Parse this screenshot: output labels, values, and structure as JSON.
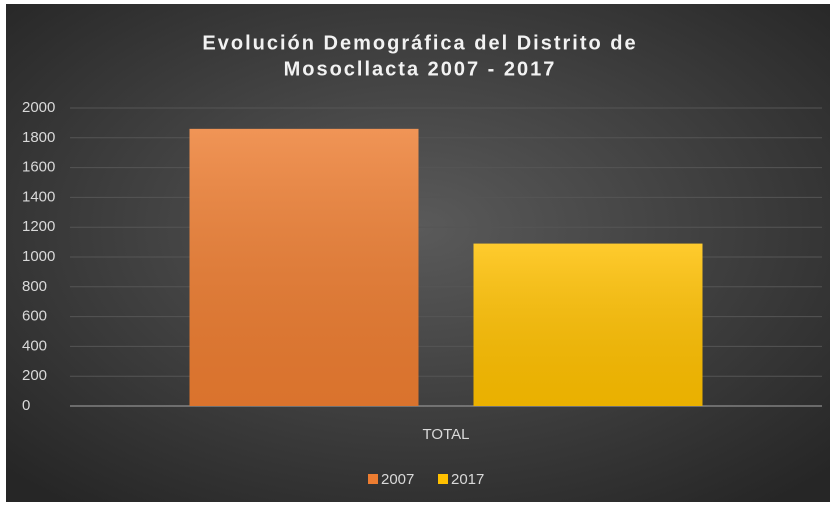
{
  "chart_data": {
    "type": "bar",
    "title": [
      "Evolución Demográfica del Distrito de",
      "Mosocllacta 2007 - 2017"
    ],
    "categories": [
      "TOTAL"
    ],
    "series": [
      {
        "name": "2007",
        "color": "#ed7d31",
        "values": [
          1860
        ]
      },
      {
        "name": "2017",
        "color": "#ffc000",
        "values": [
          1090
        ]
      }
    ],
    "ylim": [
      0,
      2000
    ],
    "yticks": [
      0,
      200,
      400,
      600,
      800,
      1000,
      1200,
      1400,
      1600,
      1800,
      2000
    ],
    "grid": true,
    "legend": "bottom"
  }
}
